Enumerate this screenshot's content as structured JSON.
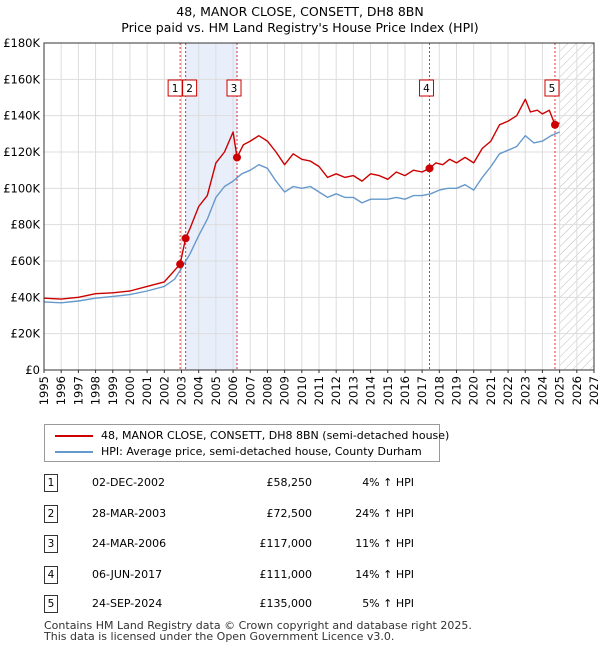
{
  "title_line1": "48, MANOR CLOSE, CONSETT, DH8 8BN",
  "title_line2": "Price paid vs. HM Land Registry's House Price Index (HPI)",
  "colors": {
    "property": "#cc0000",
    "hpi": "#6699cc",
    "shade": "#e8eefa",
    "grid": "#dddddd"
  },
  "chart_data": {
    "type": "line",
    "xlim": [
      1995,
      2027
    ],
    "ylim": [
      0,
      180000
    ],
    "x_ticks": [
      "1995",
      "1996",
      "1997",
      "1998",
      "1999",
      "2000",
      "2001",
      "2002",
      "2003",
      "2004",
      "2005",
      "2006",
      "2007",
      "2008",
      "2009",
      "2010",
      "2011",
      "2012",
      "2013",
      "2014",
      "2015",
      "2016",
      "2017",
      "2018",
      "2019",
      "2020",
      "2021",
      "2022",
      "2023",
      "2024",
      "2025",
      "2026",
      "2027"
    ],
    "y_ticks": [
      {
        "value": 0,
        "label": "£0"
      },
      {
        "value": 20000,
        "label": "£20K"
      },
      {
        "value": 40000,
        "label": "£40K"
      },
      {
        "value": 60000,
        "label": "£60K"
      },
      {
        "value": 80000,
        "label": "£80K"
      },
      {
        "value": 100000,
        "label": "£100K"
      },
      {
        "value": 120000,
        "label": "£120K"
      },
      {
        "value": 140000,
        "label": "£140K"
      },
      {
        "value": 160000,
        "label": "£160K"
      },
      {
        "value": 180000,
        "label": "£180K"
      }
    ],
    "shaded_ranges": [
      [
        2003.24,
        2006.23
      ]
    ],
    "hatched_from": 2025.0,
    "series": [
      {
        "name": "48, MANOR CLOSE, CONSETT, DH8 8BN (semi-detached house)",
        "color": "#cc0000",
        "points": [
          [
            1995,
            39500
          ],
          [
            1996,
            39000
          ],
          [
            1997,
            40000
          ],
          [
            1998,
            42000
          ],
          [
            1999,
            42500
          ],
          [
            2000,
            43500
          ],
          [
            2001,
            46000
          ],
          [
            2002,
            48500
          ],
          [
            2002.92,
            58250
          ],
          [
            2003.24,
            72500
          ],
          [
            2003.5,
            78000
          ],
          [
            2004,
            90000
          ],
          [
            2004.5,
            96000
          ],
          [
            2005,
            114000
          ],
          [
            2005.5,
            120000
          ],
          [
            2006,
            131000
          ],
          [
            2006.23,
            117000
          ],
          [
            2006.6,
            124000
          ],
          [
            2007,
            126000
          ],
          [
            2007.5,
            129000
          ],
          [
            2008,
            126000
          ],
          [
            2008.5,
            120000
          ],
          [
            2009,
            113000
          ],
          [
            2009.5,
            119000
          ],
          [
            2010,
            116000
          ],
          [
            2010.5,
            115000
          ],
          [
            2011,
            112000
          ],
          [
            2011.5,
            106000
          ],
          [
            2012,
            108000
          ],
          [
            2012.5,
            106000
          ],
          [
            2013,
            107000
          ],
          [
            2013.5,
            104000
          ],
          [
            2014,
            108000
          ],
          [
            2014.5,
            107000
          ],
          [
            2015,
            105000
          ],
          [
            2015.5,
            109000
          ],
          [
            2016,
            107000
          ],
          [
            2016.5,
            110000
          ],
          [
            2017,
            109000
          ],
          [
            2017.43,
            111000
          ],
          [
            2017.8,
            114000
          ],
          [
            2018.2,
            113000
          ],
          [
            2018.6,
            116000
          ],
          [
            2019,
            114000
          ],
          [
            2019.5,
            117000
          ],
          [
            2020,
            114000
          ],
          [
            2020.5,
            122000
          ],
          [
            2021,
            126000
          ],
          [
            2021.5,
            135000
          ],
          [
            2022,
            137000
          ],
          [
            2022.5,
            140000
          ],
          [
            2023,
            149000
          ],
          [
            2023.3,
            142000
          ],
          [
            2023.7,
            143000
          ],
          [
            2024,
            141000
          ],
          [
            2024.4,
            143000
          ],
          [
            2024.73,
            135000
          ],
          [
            2025,
            136000
          ]
        ]
      },
      {
        "name": "HPI: Average price, semi-detached house, County Durham",
        "color": "#6699cc",
        "points": [
          [
            1995,
            37500
          ],
          [
            1996,
            37000
          ],
          [
            1997,
            38000
          ],
          [
            1998,
            39500
          ],
          [
            1999,
            40500
          ],
          [
            2000,
            41500
          ],
          [
            2001,
            43500
          ],
          [
            2002,
            46000
          ],
          [
            2002.6,
            50000
          ],
          [
            2003,
            56000
          ],
          [
            2003.5,
            64000
          ],
          [
            2004,
            74000
          ],
          [
            2004.5,
            83000
          ],
          [
            2005,
            95000
          ],
          [
            2005.5,
            101000
          ],
          [
            2006,
            104000
          ],
          [
            2006.5,
            108000
          ],
          [
            2007,
            110000
          ],
          [
            2007.5,
            113000
          ],
          [
            2008,
            111000
          ],
          [
            2008.5,
            104000
          ],
          [
            2009,
            98000
          ],
          [
            2009.5,
            101000
          ],
          [
            2010,
            100000
          ],
          [
            2010.5,
            101000
          ],
          [
            2011,
            98000
          ],
          [
            2011.5,
            95000
          ],
          [
            2012,
            97000
          ],
          [
            2012.5,
            95000
          ],
          [
            2013,
            95000
          ],
          [
            2013.5,
            92000
          ],
          [
            2014,
            94000
          ],
          [
            2014.5,
            94000
          ],
          [
            2015,
            94000
          ],
          [
            2015.5,
            95000
          ],
          [
            2016,
            94000
          ],
          [
            2016.5,
            96000
          ],
          [
            2017,
            96000
          ],
          [
            2017.5,
            97000
          ],
          [
            2018,
            99000
          ],
          [
            2018.5,
            100000
          ],
          [
            2019,
            100000
          ],
          [
            2019.5,
            102000
          ],
          [
            2020,
            99000
          ],
          [
            2020.5,
            106000
          ],
          [
            2021,
            112000
          ],
          [
            2021.5,
            119000
          ],
          [
            2022,
            121000
          ],
          [
            2022.5,
            123000
          ],
          [
            2023,
            129000
          ],
          [
            2023.5,
            125000
          ],
          [
            2024,
            126000
          ],
          [
            2024.5,
            129000
          ],
          [
            2025,
            131000
          ]
        ]
      }
    ],
    "markers": [
      {
        "label": "1",
        "x": 2002.92,
        "y": 58250
      },
      {
        "label": "2",
        "x": 2003.24,
        "y": 72500
      },
      {
        "label": "3",
        "x": 2006.23,
        "y": 117000
      },
      {
        "label": "4",
        "x": 2017.43,
        "y": 111000
      },
      {
        "label": "5",
        "x": 2024.73,
        "y": 135000
      }
    ]
  },
  "legend": {
    "property": "48, MANOR CLOSE, CONSETT, DH8 8BN (semi-detached house)",
    "hpi": "HPI: Average price, semi-detached house, County Durham"
  },
  "transactions": [
    {
      "num": "1",
      "date": "02-DEC-2002",
      "price": "£58,250",
      "hpi": "4% ↑ HPI"
    },
    {
      "num": "2",
      "date": "28-MAR-2003",
      "price": "£72,500",
      "hpi": "24% ↑ HPI"
    },
    {
      "num": "3",
      "date": "24-MAR-2006",
      "price": "£117,000",
      "hpi": "11% ↑ HPI"
    },
    {
      "num": "4",
      "date": "06-JUN-2017",
      "price": "£111,000",
      "hpi": "14% ↑ HPI"
    },
    {
      "num": "5",
      "date": "24-SEP-2024",
      "price": "£135,000",
      "hpi": "5% ↑ HPI"
    }
  ],
  "footer": {
    "line1": "Contains HM Land Registry data © Crown copyright and database right 2025.",
    "line2": "This data is licensed under the Open Government Licence v3.0."
  }
}
